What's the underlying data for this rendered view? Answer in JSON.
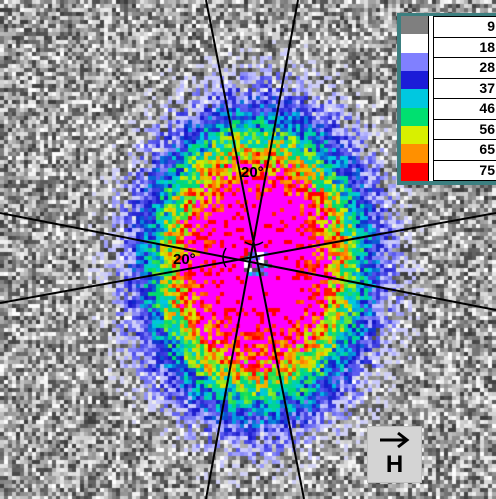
{
  "legend": {
    "labels": [
      "9",
      "18",
      "28",
      "37",
      "46",
      "56",
      "65",
      "75"
    ],
    "colors": [
      "#7f7f7f",
      "#ffffff",
      "#8080ff",
      "#1c1cd8",
      "#00c8e0",
      "#00e070",
      "#d8f000",
      "#ff9000",
      "#ff0000"
    ]
  },
  "overlay": {
    "angle_labels": [
      "20°",
      "20°"
    ]
  },
  "field_indicator": {
    "label": "H",
    "icon": "right-arrow-icon"
  },
  "colors": {
    "saturated": "#ff00ff",
    "line": "#000000",
    "legend_frame": "#3c7f80"
  }
}
